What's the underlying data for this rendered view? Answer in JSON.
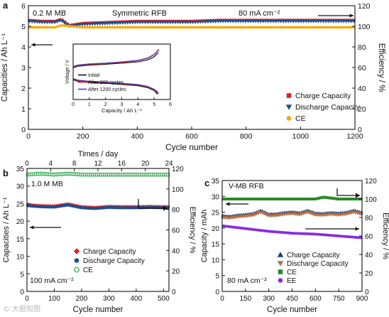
{
  "watermark": "© 大题知图",
  "chart_data": [
    {
      "id": "a",
      "type": "scatter",
      "panel_label": "a",
      "annotations": [
        "0.2 M MB",
        "Symmetric RFB",
        "80 mA cm⁻²"
      ],
      "xlabel": "Cycle number",
      "ylabel": "Capacities / Ah L⁻¹",
      "y2label": "Efficiency / %",
      "xlim": [
        0,
        1200
      ],
      "ylim": [
        0,
        6
      ],
      "y2lim": [
        0,
        120
      ],
      "xticks": [
        0,
        200,
        400,
        600,
        800,
        1000,
        1200
      ],
      "yticks": [
        0,
        1,
        2,
        3,
        4,
        5,
        6
      ],
      "y2ticks": [
        0,
        20,
        40,
        60,
        80,
        100,
        120
      ],
      "legend_position": "lower-right",
      "series": [
        {
          "name": "Charge Capacity",
          "axis": "left",
          "marker": "square",
          "color": "#e0202a",
          "x": [
            0,
            50,
            100,
            120,
            150,
            200,
            300,
            400,
            500,
            600,
            700,
            800,
            900,
            1000,
            1100,
            1200
          ],
          "y": [
            5.3,
            5.25,
            5.25,
            5.35,
            5.05,
            5.15,
            5.2,
            5.25,
            5.25,
            5.25,
            5.3,
            5.3,
            5.3,
            5.3,
            5.3,
            5.3
          ]
        },
        {
          "name": "Discharge Capacity",
          "axis": "left",
          "marker": "triangle-down",
          "color": "#1f4e8c",
          "x": [
            0,
            50,
            100,
            120,
            150,
            200,
            300,
            400,
            500,
            600,
            700,
            800,
            900,
            1000,
            1100,
            1200
          ],
          "y": [
            5.25,
            5.2,
            5.2,
            5.3,
            5.0,
            5.1,
            5.15,
            5.2,
            5.2,
            5.2,
            5.25,
            5.25,
            5.25,
            5.25,
            5.25,
            5.25
          ]
        },
        {
          "name": "CE",
          "axis": "right",
          "marker": "circle",
          "color": "#f5a800",
          "x": [
            0,
            100,
            120,
            200,
            400,
            600,
            800,
            1000,
            1200
          ],
          "y": [
            99,
            99,
            101,
            99,
            99,
            99,
            99,
            99,
            99
          ]
        }
      ],
      "inset": {
        "xlabel": "Capacity / Ah L⁻¹",
        "ylabel": "Voltage / V",
        "xlim": [
          0,
          6
        ],
        "xticks": [
          0,
          1,
          2,
          3,
          4,
          5,
          6
        ],
        "series": [
          {
            "name": "Initial",
            "color": "#111111",
            "charge": [
              [
                0,
                -0.05
              ],
              [
                0.3,
                -0.01
              ],
              [
                1,
                0.02
              ],
              [
                2,
                0.04
              ],
              [
                3,
                0.07
              ],
              [
                4,
                0.1
              ],
              [
                4.6,
                0.15
              ],
              [
                5,
                0.23
              ],
              [
                5.25,
                0.33
              ]
            ],
            "discharge": [
              [
                0,
                -0.35
              ],
              [
                0.3,
                -0.39
              ],
              [
                1,
                -0.42
              ],
              [
                2,
                -0.44
              ],
              [
                3,
                -0.47
              ],
              [
                4,
                -0.5
              ],
              [
                4.6,
                -0.55
              ],
              [
                5,
                -0.62
              ],
              [
                5.2,
                -0.72
              ]
            ]
          },
          {
            "name": "After 200 cycles",
            "color": "#e0202a",
            "charge": [
              [
                0,
                -0.02
              ],
              [
                0.3,
                0.01
              ],
              [
                1,
                0.04
              ],
              [
                2,
                0.06
              ],
              [
                3,
                0.09
              ],
              [
                4,
                0.13
              ],
              [
                4.6,
                0.19
              ],
              [
                5,
                0.28
              ],
              [
                5.3,
                0.4
              ]
            ],
            "discharge": [
              [
                0,
                -0.33
              ],
              [
                0.3,
                -0.37
              ],
              [
                1,
                -0.4
              ],
              [
                2,
                -0.42
              ],
              [
                3,
                -0.45
              ],
              [
                4,
                -0.48
              ],
              [
                4.6,
                -0.53
              ],
              [
                5,
                -0.6
              ],
              [
                5.25,
                -0.7
              ]
            ]
          },
          {
            "name": "After 1200 cycles",
            "color": "#4a3fb5",
            "charge": [
              [
                0,
                -0.01
              ],
              [
                0.3,
                0.02
              ],
              [
                1,
                0.05
              ],
              [
                2,
                0.07
              ],
              [
                3,
                0.1
              ],
              [
                4,
                0.14
              ],
              [
                4.6,
                0.2
              ],
              [
                5,
                0.29
              ],
              [
                5.3,
                0.42
              ]
            ],
            "discharge": [
              [
                0,
                -0.32
              ],
              [
                0.3,
                -0.36
              ],
              [
                1,
                -0.39
              ],
              [
                2,
                -0.41
              ],
              [
                3,
                -0.44
              ],
              [
                4,
                -0.47
              ],
              [
                4.6,
                -0.52
              ],
              [
                5,
                -0.59
              ],
              [
                5.28,
                -0.68
              ]
            ]
          }
        ]
      }
    },
    {
      "id": "b",
      "type": "scatter",
      "panel_label": "b",
      "annotations": [
        "1.0 M MB",
        "100 mA cm⁻²"
      ],
      "xlabel": "Cycle number",
      "x2label": "Times / day",
      "ylabel": "Capacities / Ah L⁻¹",
      "y2label": "Efficiency / %",
      "xlim": [
        0,
        520
      ],
      "x2lim": [
        0,
        24
      ],
      "ylim": [
        0,
        35
      ],
      "y2lim": [
        0,
        120
      ],
      "xticks": [
        0,
        100,
        200,
        300,
        400,
        500
      ],
      "x2ticks": [
        0,
        4,
        8,
        12,
        16,
        20,
        24
      ],
      "yticks": [
        0,
        5,
        10,
        15,
        20,
        25,
        30,
        35
      ],
      "y2ticks": [
        0,
        20,
        40,
        60,
        80,
        100,
        120
      ],
      "legend_position": "lower-right",
      "series": [
        {
          "name": "Charge Capacity",
          "axis": "left",
          "marker": "diamond",
          "color": "#e0202a",
          "x": [
            0,
            50,
            100,
            150,
            200,
            250,
            300,
            350,
            400,
            450,
            500,
            520
          ],
          "y": [
            24.6,
            24.3,
            24.2,
            24.8,
            24.0,
            23.8,
            24.1,
            24.0,
            24.0,
            24.1,
            24.0,
            24.0
          ]
        },
        {
          "name": "Discharge Capacity",
          "axis": "left",
          "marker": "circle",
          "color": "#1f4e8c",
          "x": [
            0,
            50,
            100,
            150,
            200,
            250,
            300,
            350,
            400,
            450,
            500,
            520
          ],
          "y": [
            24.4,
            24.1,
            24.0,
            24.6,
            23.8,
            23.6,
            23.9,
            23.8,
            23.8,
            23.9,
            23.8,
            23.8
          ]
        },
        {
          "name": "CE",
          "axis": "right",
          "marker": "circle-open",
          "color": "#2ea84a",
          "x": [
            0,
            50,
            100,
            150,
            200,
            250,
            300,
            350,
            400,
            450,
            500,
            520
          ],
          "y": [
            114,
            115,
            114,
            115,
            114,
            114,
            114,
            114,
            114,
            114,
            114,
            114
          ]
        }
      ]
    },
    {
      "id": "c",
      "type": "scatter",
      "panel_label": "c",
      "annotations": [
        "V-MB RFB",
        "80 mA cm⁻²"
      ],
      "xlabel": "Cycle number",
      "ylabel": "Capacity / mAh",
      "y2label": "Efficiency / %",
      "xlim": [
        0,
        900
      ],
      "ylim": [
        0,
        35
      ],
      "y2lim": [
        0,
        120
      ],
      "xticks": [
        0,
        150,
        300,
        450,
        600,
        750,
        900
      ],
      "yticks": [
        0,
        5,
        10,
        15,
        20,
        25,
        30,
        35
      ],
      "y2ticks": [
        0,
        20,
        40,
        60,
        80,
        100,
        120
      ],
      "legend_position": "lower-right",
      "series": [
        {
          "name": "Charge Capacity",
          "axis": "left",
          "marker": "triangle-up",
          "color": "#1f3f6b",
          "x": [
            0,
            50,
            100,
            150,
            200,
            250,
            300,
            350,
            400,
            450,
            500,
            550,
            600,
            650,
            700,
            750,
            800,
            850,
            900
          ],
          "y": [
            23.8,
            23.6,
            24.0,
            24.2,
            24.5,
            25.5,
            24.3,
            24.4,
            24.8,
            25.0,
            24.7,
            25.5,
            24.6,
            24.5,
            24.8,
            24.6,
            24.9,
            25.5,
            24.8
          ]
        },
        {
          "name": "Discharge Capacity",
          "axis": "left",
          "marker": "triangle-down",
          "color": "#b0704a",
          "x": [
            0,
            50,
            100,
            150,
            200,
            250,
            300,
            350,
            400,
            450,
            500,
            550,
            600,
            650,
            700,
            750,
            800,
            850,
            900
          ],
          "y": [
            23.4,
            23.2,
            23.6,
            23.8,
            24.1,
            25.1,
            23.9,
            24.0,
            24.4,
            24.6,
            24.3,
            25.1,
            24.2,
            24.1,
            24.4,
            24.2,
            24.5,
            25.1,
            24.4
          ]
        },
        {
          "name": "CE",
          "axis": "right",
          "marker": "square",
          "color": "#2a8a2a",
          "x": [
            0,
            150,
            300,
            450,
            600,
            650,
            750,
            900
          ],
          "y": [
            100,
            100,
            100,
            100,
            100,
            102,
            100,
            100
          ]
        },
        {
          "name": "EE",
          "axis": "right",
          "marker": "circle",
          "color": "#8a2be2",
          "x": [
            0,
            150,
            300,
            450,
            600,
            750,
            900
          ],
          "y": [
            71,
            68,
            65,
            63,
            62,
            60,
            58
          ]
        }
      ]
    }
  ]
}
